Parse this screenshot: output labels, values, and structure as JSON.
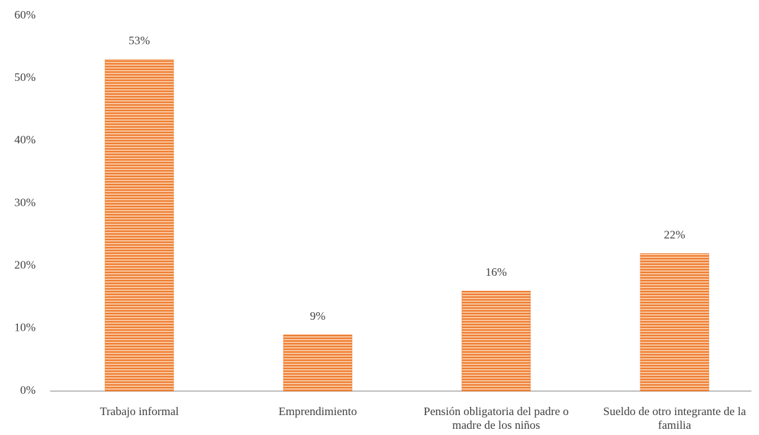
{
  "chart_data": {
    "type": "bar",
    "categories": [
      "Trabajo informal",
      "Emprendimiento",
      "Pensión obligatoria del padre o madre de los niños",
      "Sueldo de otro integrante de la familia"
    ],
    "values": [
      53,
      9,
      16,
      22
    ],
    "value_labels": [
      "53%",
      "9%",
      "16%",
      "22%"
    ],
    "color": "#ee7d31",
    "ylim": [
      0,
      60
    ],
    "yticks": [
      {
        "value": 0,
        "label": "0%"
      },
      {
        "value": 10,
        "label": "10%"
      },
      {
        "value": 20,
        "label": "20%"
      },
      {
        "value": 30,
        "label": "30%"
      },
      {
        "value": 40,
        "label": "40%"
      },
      {
        "value": 50,
        "label": "50%"
      },
      {
        "value": 60,
        "label": "60%"
      }
    ],
    "grid": false
  }
}
